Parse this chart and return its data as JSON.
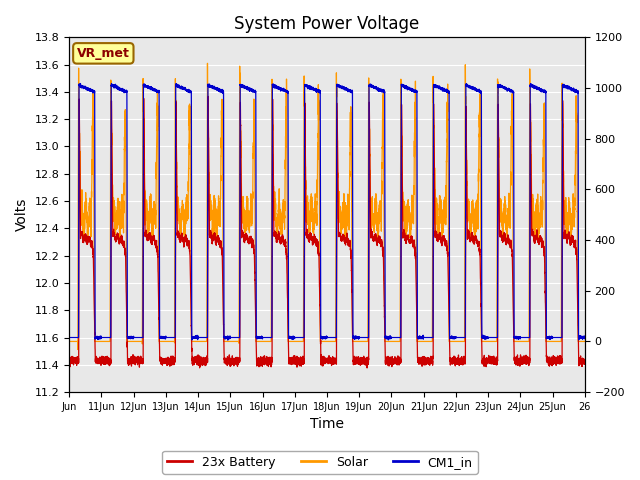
{
  "title": "System Power Voltage",
  "xlabel": "Time",
  "ylabel": "Volts",
  "ylim_left": [
    11.2,
    13.8
  ],
  "ylim_right": [
    -200,
    1200
  ],
  "yticks_left": [
    11.2,
    11.4,
    11.6,
    11.8,
    12.0,
    12.2,
    12.4,
    12.6,
    12.8,
    13.0,
    13.2,
    13.4,
    13.6,
    13.8
  ],
  "yticks_right": [
    -200,
    0,
    200,
    400,
    600,
    800,
    1000,
    1200
  ],
  "xlim": [
    0,
    16
  ],
  "xtick_labels": [
    "Jun",
    "11Jun",
    "12Jun",
    "13Jun",
    "14Jun",
    "15Jun",
    "16Jun",
    "17Jun",
    "18Jun",
    "19Jun",
    "20Jun",
    "21Jun",
    "22Jun",
    "23Jun",
    "24Jun",
    "25Jun",
    "26"
  ],
  "bg_color": "#e8e8e8",
  "line_colors": {
    "battery": "#cc0000",
    "solar": "#ff9900",
    "cm1": "#0000cc"
  },
  "legend_labels": [
    "23x Battery",
    "Solar",
    "CM1_in"
  ],
  "annotation_text": "VR_met",
  "annotation_bg": "#ffff99",
  "annotation_border": "#996600"
}
